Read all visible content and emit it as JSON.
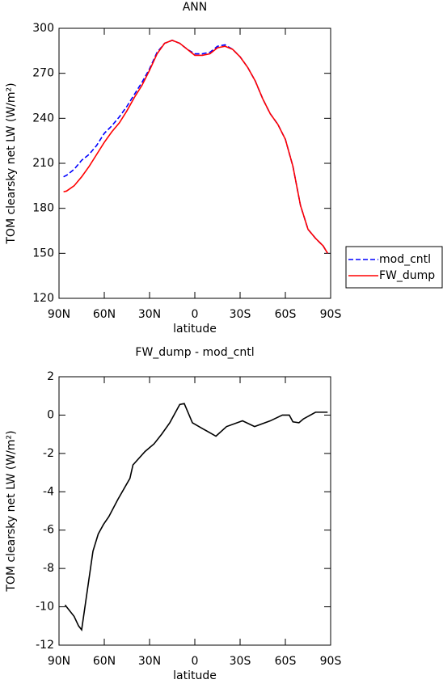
{
  "chart_data": [
    {
      "type": "line",
      "title": "ANN",
      "xlabel": "latitude",
      "ylabel": "TOM clearsky net LW (W/m²)",
      "x": [
        87,
        85,
        80,
        75,
        70,
        65,
        60,
        55,
        50,
        45,
        40,
        35,
        30,
        25,
        20,
        15,
        10,
        5,
        0,
        -5,
        -10,
        -15,
        -20,
        -25,
        -30,
        -35,
        -40,
        -45,
        -50,
        -55,
        -60,
        -65,
        -70,
        -75,
        -80,
        -85,
        -88
      ],
      "series": [
        {
          "name": "mod_cntl",
          "color": "#0000ff",
          "style": "dashed",
          "values": [
            201,
            202,
            206,
            212,
            216,
            222,
            230,
            235,
            241,
            248,
            256,
            264,
            273,
            284,
            290,
            292,
            290,
            286,
            283,
            283,
            284,
            288,
            289,
            286,
            281,
            274,
            265,
            253,
            243,
            236,
            226,
            208,
            182,
            166,
            160,
            155,
            150
          ]
        },
        {
          "name": "FW_dump",
          "color": "#ff0000",
          "style": "solid",
          "values": [
            191,
            191.5,
            195,
            201,
            208,
            216,
            224,
            231,
            237,
            245,
            254,
            262,
            272,
            283,
            290,
            292,
            290,
            286,
            282,
            282,
            283,
            287,
            288,
            286,
            281,
            274,
            265,
            253,
            243,
            236,
            226,
            208,
            182,
            166,
            160,
            155,
            150
          ]
        }
      ],
      "xlim": [
        90,
        -90
      ],
      "xticks": [
        {
          "value": 90,
          "label": "90N"
        },
        {
          "value": 60,
          "label": "60N"
        },
        {
          "value": 30,
          "label": "30N"
        },
        0,
        {
          "value": -30,
          "label": "30S"
        },
        {
          "value": -60,
          "label": "60S"
        },
        {
          "value": -90,
          "label": "90S"
        }
      ],
      "ylim": [
        120,
        300
      ],
      "yticks": [
        120,
        150,
        180,
        210,
        240,
        270,
        300
      ],
      "legend": "right"
    },
    {
      "type": "line",
      "title": "FW_dump - mod_cntl",
      "xlabel": "latitude",
      "ylabel": "TOM clearsky net LW (W/m²)",
      "x": [
        86,
        80,
        77,
        75,
        67.5,
        64,
        60.5,
        57,
        51,
        43,
        41,
        33,
        27,
        22,
        16.6,
        10,
        7,
        1.6,
        -5,
        -14,
        -21,
        -31.6,
        -39.6,
        -50,
        -58,
        -62.6,
        -65,
        -69,
        -72,
        -80,
        -88
      ],
      "series": [
        {
          "color": "#000000",
          "style": "solid",
          "values": [
            -9.9,
            -10.5,
            -11.0,
            -11.2,
            -7.1,
            -6.2,
            -5.7,
            -5.3,
            -4.4,
            -3.3,
            -2.6,
            -1.9,
            -1.5,
            -1.0,
            -0.4,
            0.55,
            0.6,
            -0.4,
            -0.7,
            -1.1,
            -0.6,
            -0.3,
            -0.6,
            -0.3,
            0.0,
            0.0,
            -0.35,
            -0.4,
            -0.2,
            0.15,
            0.15
          ]
        }
      ],
      "xlim": [
        90,
        -90
      ],
      "xticks": [
        {
          "value": 90,
          "label": "90N"
        },
        {
          "value": 60,
          "label": "60N"
        },
        {
          "value": 30,
          "label": "30N"
        },
        0,
        {
          "value": -30,
          "label": "30S"
        },
        {
          "value": -60,
          "label": "60S"
        },
        {
          "value": -90,
          "label": "90S"
        }
      ],
      "ylim": [
        -12,
        2
      ],
      "yticks": [
        -12,
        -10,
        -8,
        -6,
        -4,
        -2,
        0,
        2
      ]
    }
  ]
}
